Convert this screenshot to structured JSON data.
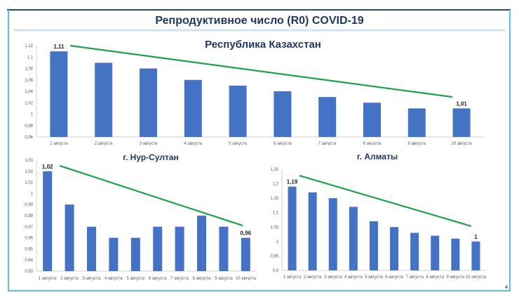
{
  "slide": {
    "title": "Репродуктивное число (R0) COVID-19",
    "page_number": "4"
  },
  "colors": {
    "bar": "#4472c4",
    "trend": "#1aa34a",
    "title": "#1f3864",
    "frame": "#5bc3d3",
    "frame_top": "#1d4f5c"
  },
  "chart_data": [
    {
      "type": "bar",
      "title": "Республика Казахстан",
      "categories": [
        "1 августа",
        "2 августа",
        "3 августа",
        "4 августа",
        "5 августа",
        "6 августа",
        "7 августа",
        "8 августа",
        "9 августа",
        "10 августа"
      ],
      "values": [
        1.11,
        1.09,
        1.08,
        1.06,
        1.05,
        1.04,
        1.03,
        1.02,
        1.01,
        1.01
      ],
      "ylim": [
        0.96,
        1.12
      ],
      "yticks": [
        "0,96",
        "0,98",
        "1",
        "1,02",
        "1,04",
        "1,06",
        "1,08",
        "1,1",
        "1,12"
      ],
      "data_labels": [
        {
          "index": 0,
          "text": "1,11"
        },
        {
          "index": 9,
          "text": "1,01"
        }
      ],
      "trend_line": {
        "from": 1.12,
        "to": 1.03
      },
      "xlabel": "",
      "ylabel": "",
      "grid": false,
      "legend": "none"
    },
    {
      "type": "bar",
      "title": "г. Нур-Султан",
      "categories": [
        "1 августа",
        "2 августа",
        "3 августа",
        "4 августа",
        "5 августа",
        "6 августа",
        "7 августа",
        "8 августа",
        "9 августа",
        "10 августа"
      ],
      "values": [
        1.02,
        0.99,
        0.97,
        0.96,
        0.96,
        0.97,
        0.97,
        0.98,
        0.97,
        0.96
      ],
      "ylim": [
        0.93,
        1.03
      ],
      "yticks": [
        "0,93",
        "0,94",
        "0,95",
        "0,96",
        "0,97",
        "0,98",
        "0,99",
        "1",
        "1,01",
        "1,02",
        "1,03"
      ],
      "data_labels": [
        {
          "index": 0,
          "text": "1,02"
        },
        {
          "index": 9,
          "text": "0,96"
        }
      ],
      "trend_line": {
        "from": 1.025,
        "to": 0.971
      },
      "xlabel": "",
      "ylabel": "",
      "grid": false,
      "legend": "none"
    },
    {
      "type": "bar",
      "title": "г. Алматы",
      "categories": [
        "1 августа",
        "2 августа",
        "3 августа",
        "4 августа",
        "5 августа",
        "6 августа",
        "7 августа",
        "8 августа",
        "9 августа",
        "10 августа"
      ],
      "values": [
        1.19,
        1.17,
        1.15,
        1.12,
        1.07,
        1.05,
        1.03,
        1.02,
        1.01,
        1.0
      ],
      "ylim": [
        0.9,
        1.25
      ],
      "yticks": [
        "0,9",
        "0,95",
        "1",
        "1,05",
        "1,1",
        "1,15",
        "1,2",
        "1,25"
      ],
      "data_labels": [
        {
          "index": 0,
          "text": "1,19"
        },
        {
          "index": 9,
          "text": "1"
        }
      ],
      "trend_line": {
        "from": 1.228,
        "to": 1.053
      },
      "xlabel": "",
      "ylabel": "",
      "grid": false,
      "legend": "none"
    }
  ]
}
